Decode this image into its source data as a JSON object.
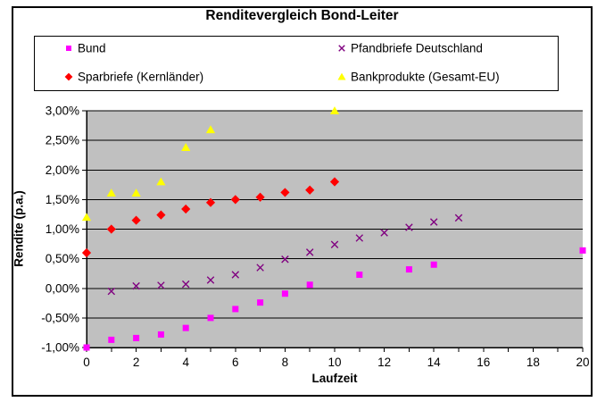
{
  "chart_data": {
    "type": "scatter",
    "title": "Renditevergleich Bond-Leiter",
    "xlabel": "Laufzeit",
    "ylabel": "Rendite (p.a.)",
    "xlim": [
      0,
      20
    ],
    "ylim": [
      -1.0,
      3.0
    ],
    "plot_bg": "#C0C0C0",
    "gridline_color": "#000000",
    "grid": "horizontal-only",
    "legend_position": "top",
    "y_ticks": {
      "values": [
        3.0,
        2.5,
        2.0,
        1.5,
        1.0,
        0.5,
        0.0,
        -0.5,
        -1.0
      ],
      "labels": [
        "3,00%",
        "2,50%",
        "2,00%",
        "1,50%",
        "1,00%",
        "0,50%",
        "0,00%",
        "-0,50%",
        "-1,00%"
      ]
    },
    "x_ticks": {
      "major_values": [
        0,
        2,
        4,
        6,
        8,
        10,
        12,
        14,
        16,
        18,
        20
      ],
      "labels": [
        "0",
        "2",
        "4",
        "6",
        "8",
        "10",
        "12",
        "14",
        "16",
        "18",
        "20"
      ],
      "minor_step": 1
    },
    "series": [
      {
        "id": "bund",
        "name": "Bund",
        "marker": "square",
        "color": "#FF00FF",
        "points": [
          [
            0,
            -1.0
          ],
          [
            1,
            -0.87
          ],
          [
            2,
            -0.84
          ],
          [
            3,
            -0.78
          ],
          [
            4,
            -0.67
          ],
          [
            5,
            -0.5
          ],
          [
            6,
            -0.35
          ],
          [
            7,
            -0.24
          ],
          [
            8,
            -0.09
          ],
          [
            9,
            0.06
          ],
          [
            11,
            0.23
          ],
          [
            13,
            0.32
          ],
          [
            14,
            0.4
          ],
          [
            20,
            0.64
          ]
        ]
      },
      {
        "id": "pfandbriefe",
        "name": "Pfandbriefe Deutschland",
        "marker": "x",
        "color": "#800080",
        "points": [
          [
            1,
            -0.05
          ],
          [
            2,
            0.04
          ],
          [
            3,
            0.05
          ],
          [
            4,
            0.07
          ],
          [
            5,
            0.14
          ],
          [
            6,
            0.23
          ],
          [
            7,
            0.35
          ],
          [
            8,
            0.49
          ],
          [
            9,
            0.61
          ],
          [
            10,
            0.74
          ],
          [
            11,
            0.85
          ],
          [
            12,
            0.94
          ],
          [
            13,
            1.03
          ],
          [
            14,
            1.12
          ],
          [
            15,
            1.19
          ]
        ]
      },
      {
        "id": "sparbriefe",
        "name": "Sparbriefe (Kernländer)",
        "marker": "diamond",
        "color": "#FF0000",
        "points": [
          [
            0,
            0.6
          ],
          [
            1,
            1.0
          ],
          [
            2,
            1.15
          ],
          [
            3,
            1.24
          ],
          [
            4,
            1.34
          ],
          [
            5,
            1.45
          ],
          [
            6,
            1.5
          ],
          [
            7,
            1.54
          ],
          [
            8,
            1.62
          ],
          [
            9,
            1.66
          ],
          [
            10,
            1.8
          ]
        ]
      },
      {
        "id": "bankprodukte",
        "name": "Bankprodukte (Gesamt-EU)",
        "marker": "triangle",
        "color": "#FFFF00",
        "points": [
          [
            0,
            1.2
          ],
          [
            1,
            1.61
          ],
          [
            2,
            1.61
          ],
          [
            3,
            1.8
          ],
          [
            4,
            2.38
          ],
          [
            5,
            2.68
          ],
          [
            10,
            3.0
          ]
        ]
      }
    ]
  }
}
